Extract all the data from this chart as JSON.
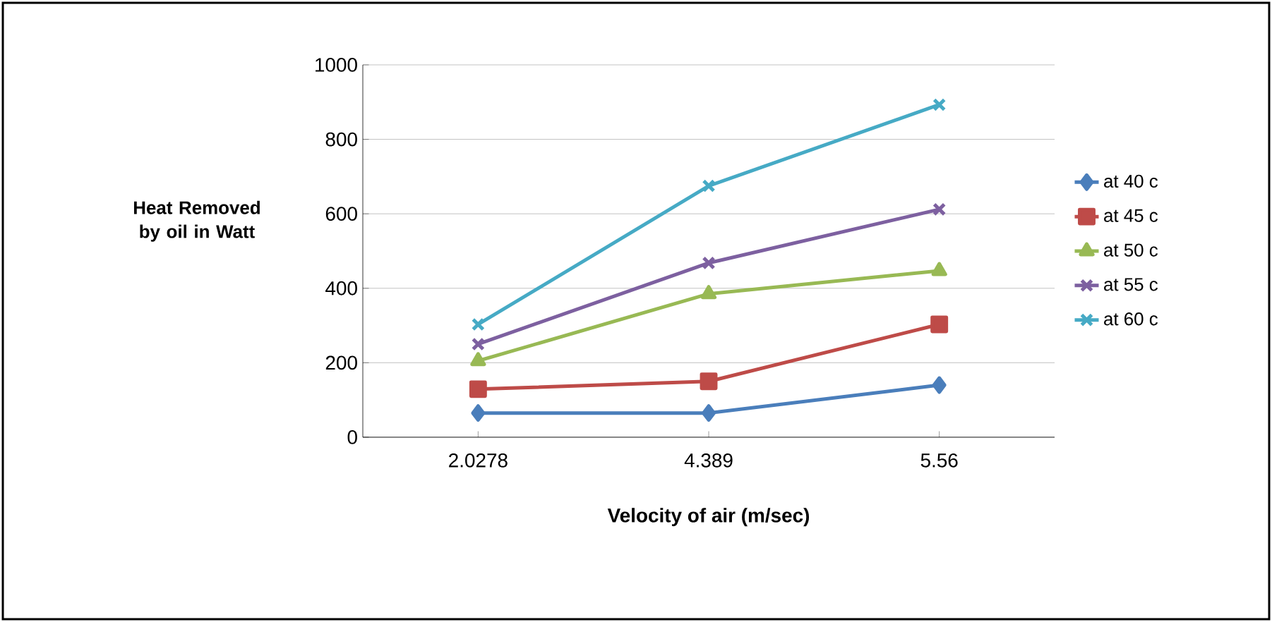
{
  "chart_data": {
    "type": "line",
    "xlabel": "Velocity of air (m/sec)",
    "ylabel": "Heat Removed by oil in Watt",
    "categories": [
      "2.0278",
      "4.389",
      "5.56"
    ],
    "series": [
      {
        "name": "at 40 c",
        "color": "#4a7ebb",
        "marker": "diamond",
        "values": [
          65,
          65,
          140
        ]
      },
      {
        "name": "at 45 c",
        "color": "#be4b48",
        "marker": "square",
        "values": [
          129,
          150,
          303
        ]
      },
      {
        "name": "at 50 c",
        "color": "#98b954",
        "marker": "triangle",
        "values": [
          205,
          385,
          447
        ]
      },
      {
        "name": "at 55 c",
        "color": "#7d60a0",
        "marker": "cross",
        "values": [
          250,
          468,
          612
        ]
      },
      {
        "name": "at 60 c",
        "color": "#46aac5",
        "marker": "cross",
        "values": [
          303,
          675,
          893
        ]
      }
    ],
    "ylim": [
      0,
      1000
    ],
    "yticks": [
      0,
      200,
      400,
      600,
      800,
      1000
    ],
    "grid": "y",
    "legend": "right",
    "line_style": "solid"
  }
}
